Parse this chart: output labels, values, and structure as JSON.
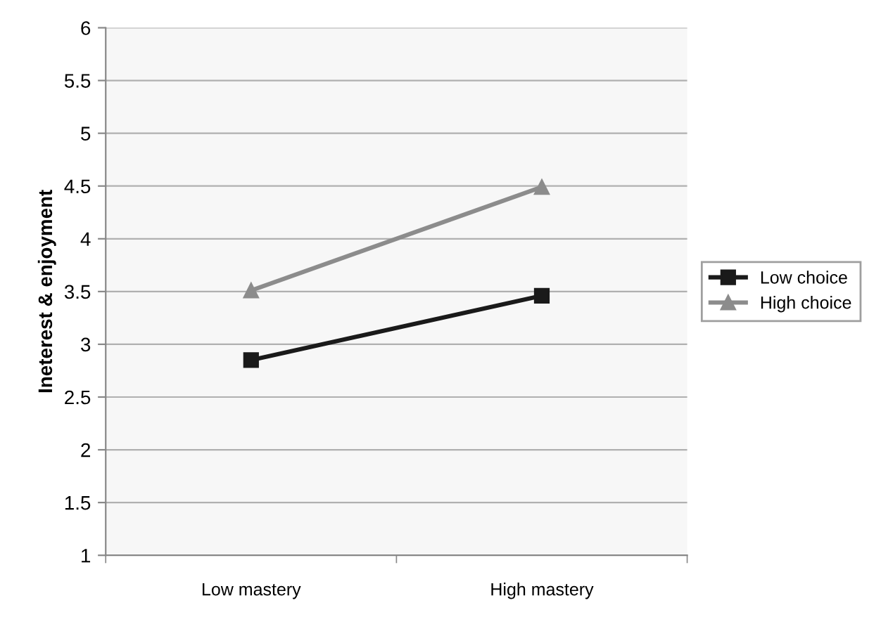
{
  "chart_data": {
    "type": "line",
    "ylabel": "Ineterest & enjoyment",
    "categories": [
      "Low mastery",
      "High mastery"
    ],
    "series": [
      {
        "name": "Low choice",
        "color": "#1a1a1a",
        "values": [
          2.85,
          3.46
        ],
        "marker": "square"
      },
      {
        "name": "High choice",
        "color": "#8c8c8c",
        "values": [
          3.51,
          4.49
        ],
        "marker": "triangle"
      }
    ],
    "ylim": [
      1,
      6
    ],
    "yticks": [
      1,
      1.5,
      2,
      2.5,
      3,
      3.5,
      4,
      4.5,
      5,
      5.5,
      6
    ],
    "grid": "y",
    "legend": "right",
    "line_style": "solid"
  }
}
